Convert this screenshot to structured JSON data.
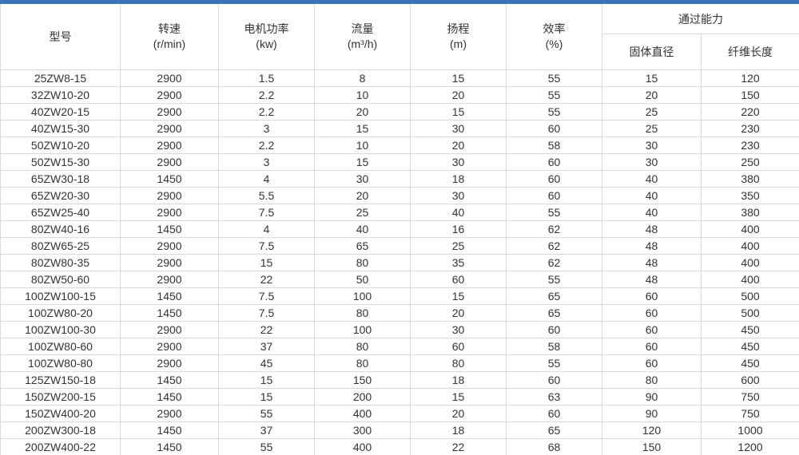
{
  "accent": {
    "top_bar_color": "#3a74b8",
    "border_color": "#d9d9d9",
    "text_color": "#333333"
  },
  "table": {
    "headers": [
      {
        "label": "型号",
        "sublabel": ""
      },
      {
        "label": "转速",
        "sublabel": "(r/min)"
      },
      {
        "label": "电机功率",
        "sublabel": "(kw)"
      },
      {
        "label": "流量",
        "sublabel": "(m³/h)"
      },
      {
        "label": "扬程",
        "sublabel": "(m)"
      },
      {
        "label": "效率",
        "sublabel": "(%)"
      }
    ],
    "group_header": {
      "label": "通过能力",
      "children": [
        {
          "label": "固体直径"
        },
        {
          "label": "纤维长度"
        }
      ]
    },
    "rows": [
      [
        "25ZW8-15",
        "2900",
        "1.5",
        "8",
        "15",
        "55",
        "15",
        "120"
      ],
      [
        "32ZW10-20",
        "2900",
        "2.2",
        "10",
        "20",
        "55",
        "20",
        "150"
      ],
      [
        "40ZW20-15",
        "2900",
        "2.2",
        "20",
        "15",
        "55",
        "25",
        "220"
      ],
      [
        "40ZW15-30",
        "2900",
        "3",
        "15",
        "30",
        "60",
        "25",
        "230"
      ],
      [
        "50ZW10-20",
        "2900",
        "2.2",
        "10",
        "20",
        "58",
        "30",
        "230"
      ],
      [
        "50ZW15-30",
        "2900",
        "3",
        "15",
        "30",
        "60",
        "30",
        "250"
      ],
      [
        "65ZW30-18",
        "1450",
        "4",
        "30",
        "18",
        "60",
        "40",
        "380"
      ],
      [
        "65ZW20-30",
        "2900",
        "5.5",
        "20",
        "30",
        "60",
        "40",
        "350"
      ],
      [
        "65ZW25-40",
        "2900",
        "7.5",
        "25",
        "40",
        "55",
        "40",
        "380"
      ],
      [
        "80ZW40-16",
        "1450",
        "4",
        "40",
        "16",
        "62",
        "48",
        "400"
      ],
      [
        "80ZW65-25",
        "2900",
        "7.5",
        "65",
        "25",
        "62",
        "48",
        "400"
      ],
      [
        "80ZW80-35",
        "2900",
        "15",
        "80",
        "35",
        "62",
        "48",
        "400"
      ],
      [
        "80ZW50-60",
        "2900",
        "22",
        "50",
        "60",
        "55",
        "48",
        "400"
      ],
      [
        "100ZW100-15",
        "1450",
        "7.5",
        "100",
        "15",
        "65",
        "60",
        "500"
      ],
      [
        "100ZW80-20",
        "1450",
        "7.5",
        "80",
        "20",
        "65",
        "60",
        "500"
      ],
      [
        "100ZW100-30",
        "2900",
        "22",
        "100",
        "30",
        "60",
        "60",
        "450"
      ],
      [
        "100ZW80-60",
        "2900",
        "37",
        "80",
        "60",
        "58",
        "60",
        "450"
      ],
      [
        "100ZW80-80",
        "2900",
        "45",
        "80",
        "80",
        "55",
        "60",
        "450"
      ],
      [
        "125ZW150-18",
        "1450",
        "15",
        "150",
        "18",
        "60",
        "80",
        "600"
      ],
      [
        "150ZW200-15",
        "1450",
        "15",
        "200",
        "15",
        "63",
        "90",
        "750"
      ],
      [
        "150ZW400-20",
        "2900",
        "55",
        "400",
        "20",
        "60",
        "90",
        "750"
      ],
      [
        "200ZW300-18",
        "1450",
        "37",
        "300",
        "18",
        "65",
        "120",
        "1000"
      ],
      [
        "200ZW400-22",
        "1450",
        "55",
        "400",
        "22",
        "68",
        "150",
        "1200"
      ]
    ]
  }
}
